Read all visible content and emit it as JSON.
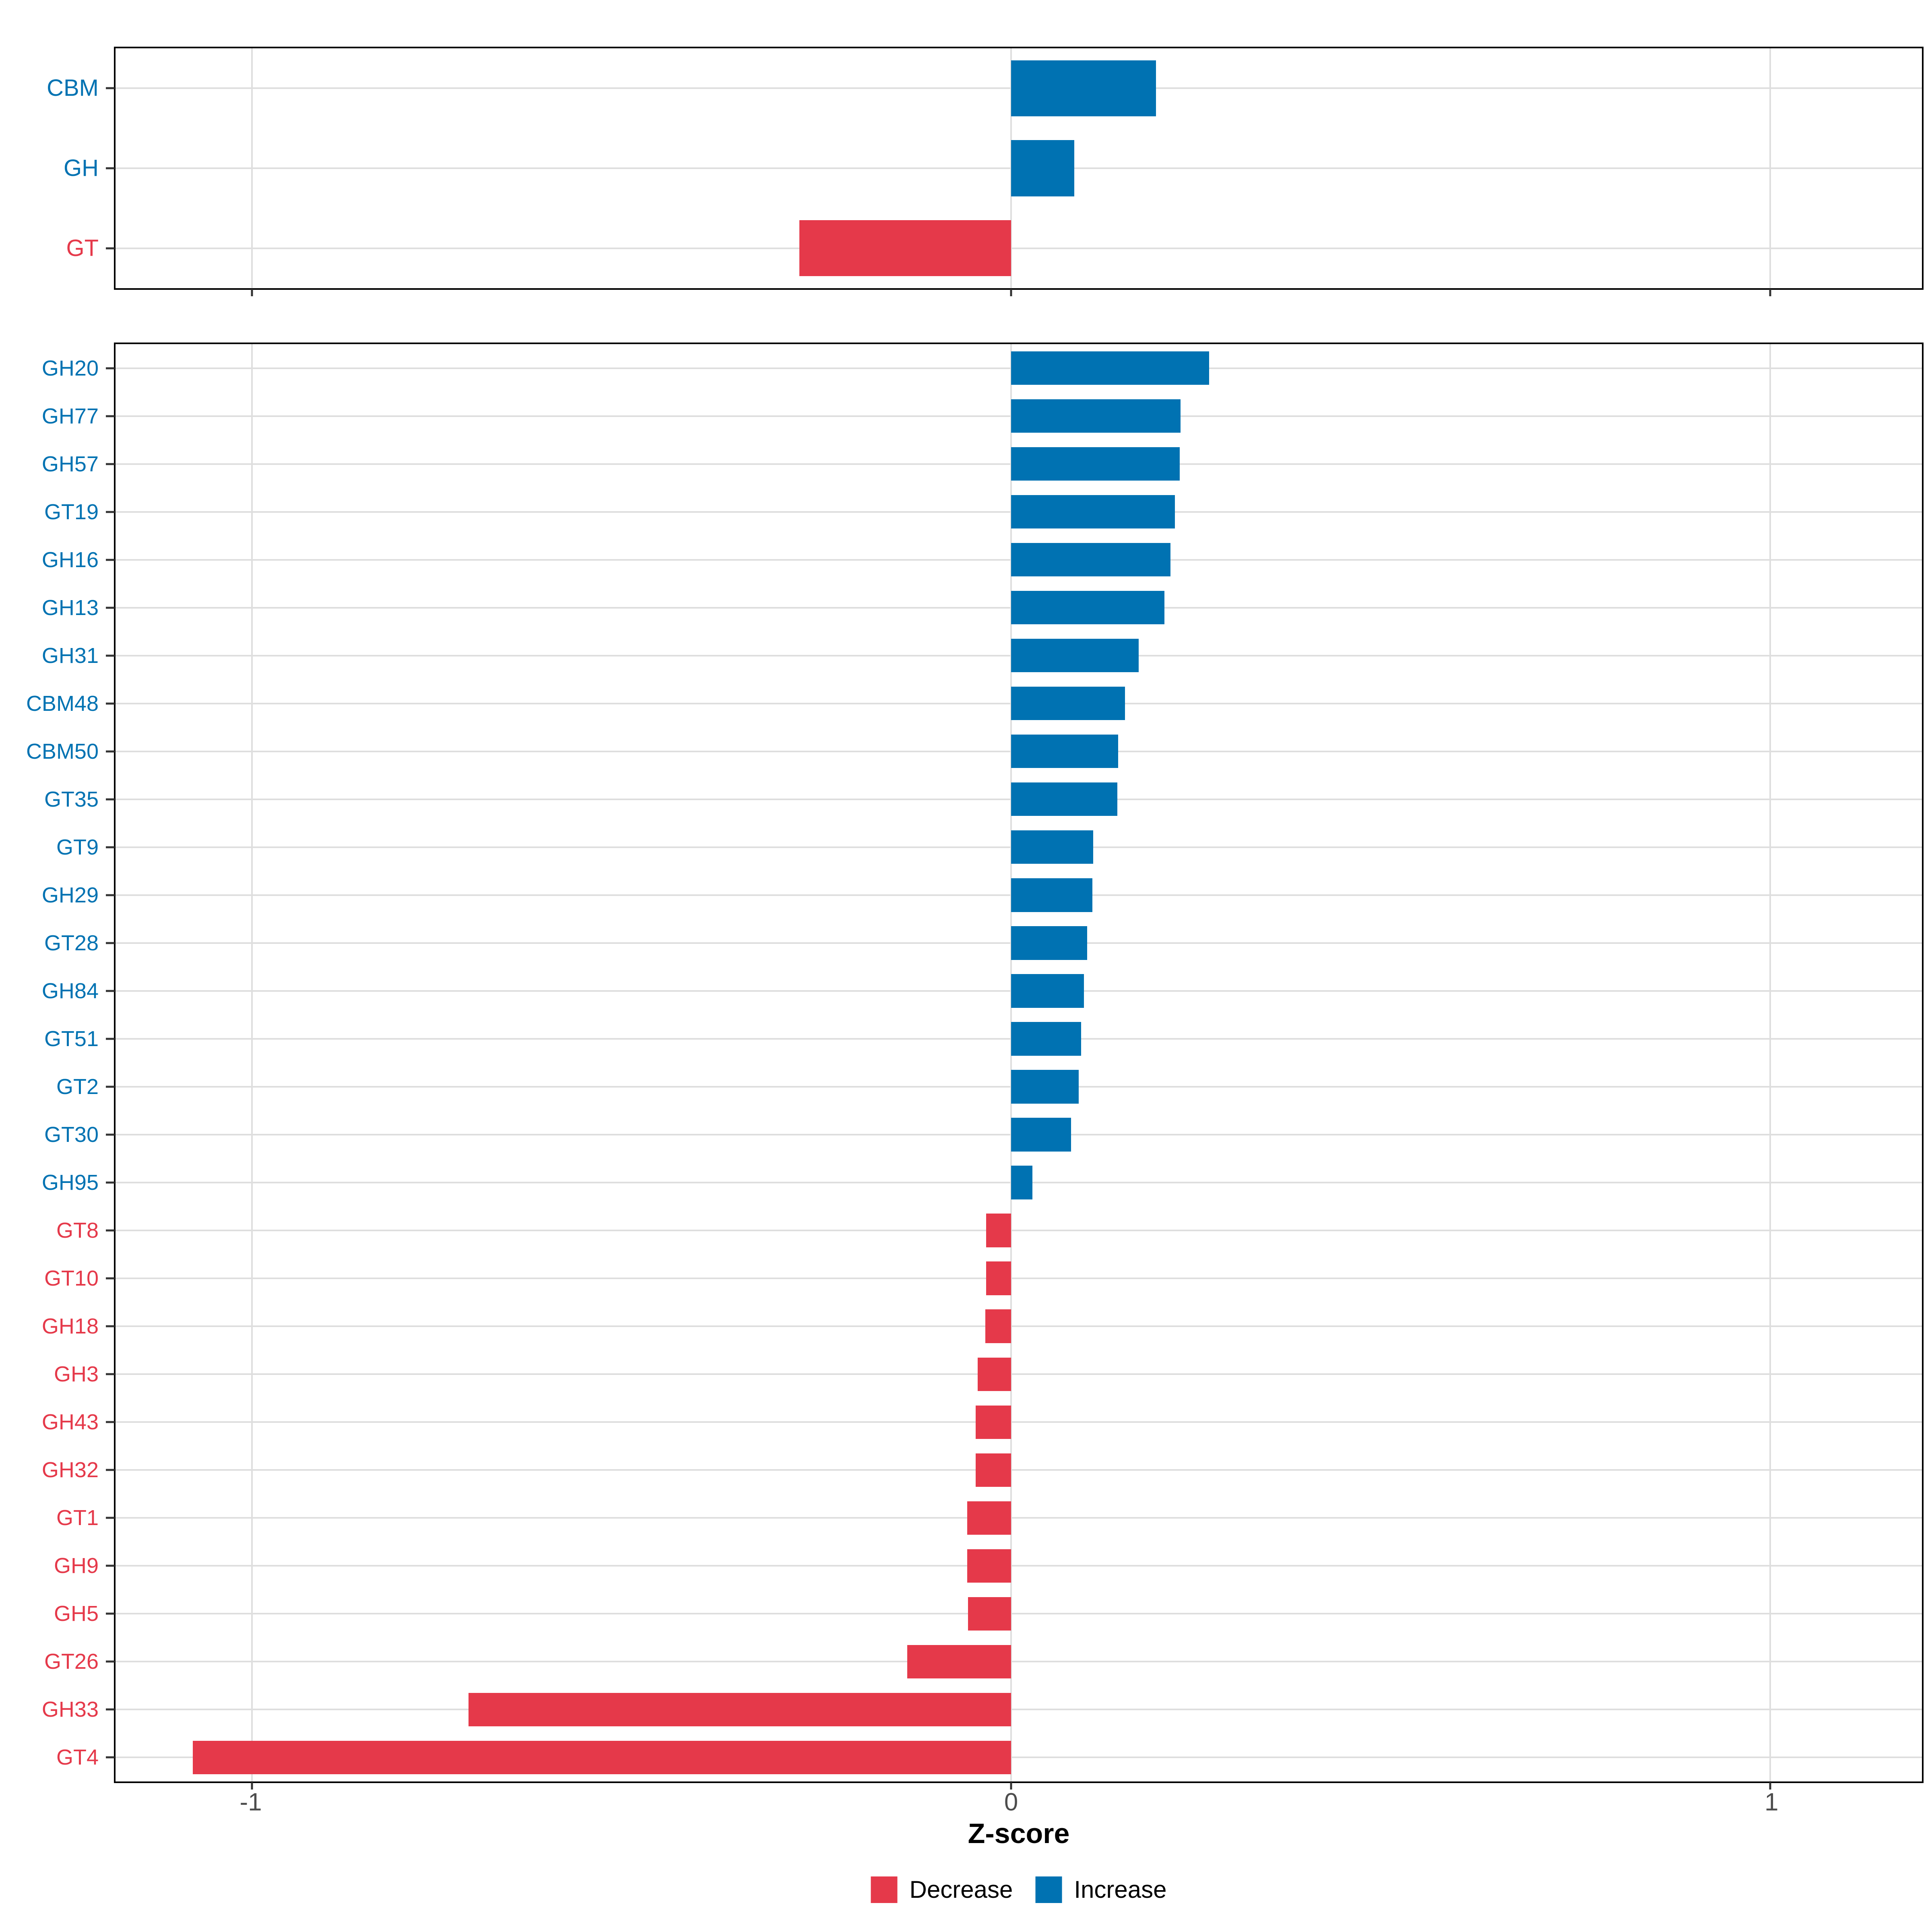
{
  "chart_data": {
    "type": "bar",
    "orientation": "horizontal",
    "xlabel": "Z-score",
    "xlim": [
      -1.18,
      1.2
    ],
    "x_ticks": [
      {
        "label": "-1",
        "value": -1
      },
      {
        "label": "0",
        "value": 0
      },
      {
        "label": "1",
        "value": 1
      }
    ],
    "grid": true,
    "legend_position": "bottom",
    "colors": {
      "decrease": "#E5394A",
      "increase": "#0072B2",
      "gridline": "#DEDEDE",
      "panel_border": "#000000",
      "tick": "#333333",
      "tick_label": "#4D4D4D"
    },
    "legend": [
      {
        "label": "Decrease",
        "direction": "decrease"
      },
      {
        "label": "Increase",
        "direction": "increase"
      }
    ],
    "panels": [
      {
        "name": "summary",
        "categories": [
          "CBM",
          "GH",
          "GT"
        ],
        "values": [
          0.191,
          0.083,
          -0.279
        ]
      },
      {
        "name": "families",
        "categories": [
          "GH20",
          "GH77",
          "GH57",
          "GT19",
          "GH16",
          "GH13",
          "GH31",
          "CBM48",
          "CBM50",
          "GT35",
          "GT9",
          "GH29",
          "GT28",
          "GH84",
          "GT51",
          "GT2",
          "GT30",
          "GH95",
          "GT8",
          "GT10",
          "GH18",
          "GH3",
          "GH43",
          "GH32",
          "GT1",
          "GH9",
          "GH5",
          "GT26",
          "GH33",
          "GT4"
        ],
        "values": [
          0.261,
          0.223,
          0.222,
          0.216,
          0.21,
          0.202,
          0.168,
          0.15,
          0.141,
          0.14,
          0.108,
          0.107,
          0.1,
          0.096,
          0.092,
          0.089,
          0.079,
          0.028,
          -0.033,
          -0.033,
          -0.034,
          -0.044,
          -0.047,
          -0.047,
          -0.058,
          -0.058,
          -0.057,
          -0.137,
          -0.715,
          -1.078
        ]
      }
    ]
  }
}
